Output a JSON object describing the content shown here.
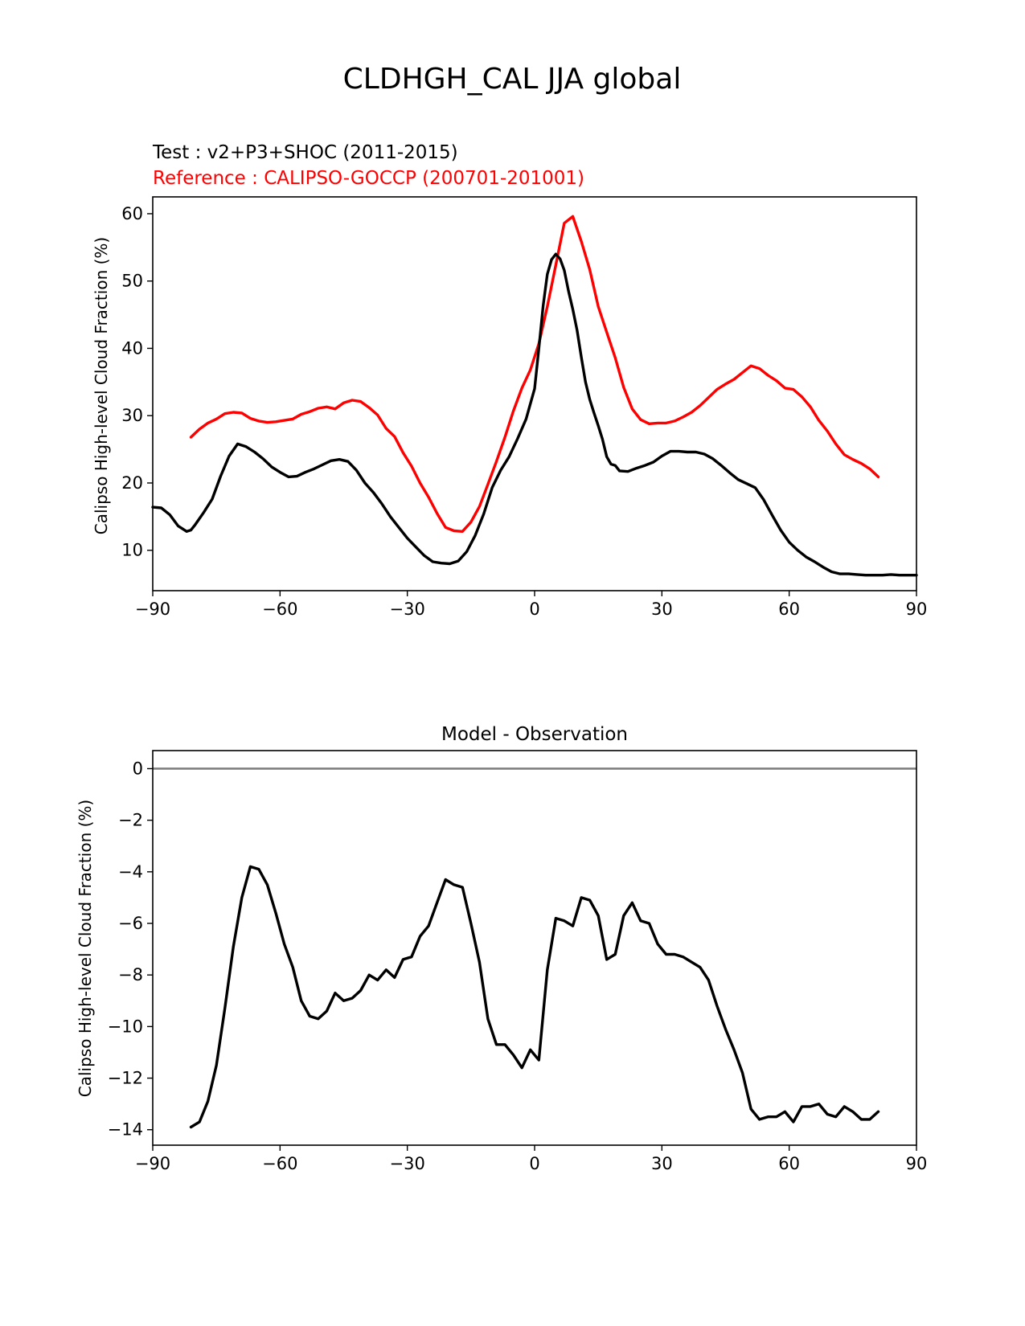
{
  "figure_title": "CLDHGH_CAL JJA global",
  "chart_data": [
    {
      "type": "line",
      "test_label": "Test : v2+P3+SHOC (2011-2015)",
      "reference_label": "Reference : CALIPSO-GOCCP (200701-201001)",
      "ylabel": "Calipso High-level Cloud Fraction (%)",
      "xlim": [
        -90,
        90
      ],
      "ylim": [
        4,
        62.5
      ],
      "xticks": [
        -90,
        -60,
        -30,
        0,
        30,
        60,
        90
      ],
      "xtick_labels": [
        "−90",
        "−60",
        "−30",
        "0",
        "30",
        "60",
        "90"
      ],
      "yticks": [
        10,
        20,
        30,
        40,
        50,
        60
      ],
      "ytick_labels": [
        "10",
        "20",
        "30",
        "40",
        "50",
        "60"
      ],
      "colors": {
        "test": "#000000",
        "reference": "#ff0000",
        "axis": "#000000"
      },
      "series": [
        {
          "key": "reference",
          "color": "#ff0000",
          "x": [
            -81,
            -79,
            -77,
            -75,
            -73,
            -71,
            -69,
            -67,
            -65,
            -63,
            -61,
            -59,
            -57,
            -55,
            -53,
            -51,
            -49,
            -47,
            -45,
            -43,
            -41,
            -39,
            -37,
            -35,
            -33,
            -31,
            -29,
            -27,
            -25,
            -23,
            -21,
            -19,
            -17,
            -15,
            -13,
            -11,
            -9,
            -7,
            -5,
            -3,
            -1,
            1,
            3,
            5,
            7,
            9,
            11,
            13,
            15,
            17,
            19,
            21,
            23,
            25,
            27,
            29,
            31,
            33,
            35,
            37,
            39,
            41,
            43,
            45,
            47,
            49,
            51,
            53,
            55,
            57,
            59,
            61,
            63,
            65,
            67,
            69,
            71,
            73,
            75,
            77,
            79,
            81
          ],
          "y": [
            26.8,
            28.0,
            28.9,
            29.5,
            30.3,
            30.5,
            30.4,
            29.6,
            29.2,
            29.0,
            29.1,
            29.3,
            29.5,
            30.2,
            30.6,
            31.1,
            31.3,
            31.0,
            31.9,
            32.3,
            32.1,
            31.2,
            30.1,
            28.1,
            26.9,
            24.5,
            22.5,
            20.0,
            17.9,
            15.5,
            13.4,
            12.9,
            12.8,
            14.2,
            16.5,
            19.8,
            23.2,
            26.8,
            30.7,
            34.1,
            36.8,
            40.7,
            46.2,
            52.4,
            58.6,
            59.6,
            55.9,
            51.7,
            46.2,
            42.4,
            38.6,
            34.2,
            31.0,
            29.4,
            28.8,
            28.9,
            28.9,
            29.2,
            29.8,
            30.5,
            31.5,
            32.7,
            33.9,
            34.7,
            35.4,
            36.4,
            37.4,
            37.0,
            36.0,
            35.2,
            34.1,
            33.9,
            32.8,
            31.3,
            29.3,
            27.7,
            25.8,
            24.2,
            23.5,
            22.9,
            22.1,
            20.9
          ]
        },
        {
          "key": "test",
          "color": "#000000",
          "x": [
            -90,
            -88,
            -86,
            -84,
            -82,
            -81,
            -80,
            -78,
            -76,
            -74,
            -72,
            -70,
            -68,
            -66,
            -64,
            -62,
            -60,
            -58,
            -56,
            -54,
            -52,
            -50,
            -48,
            -46,
            -44,
            -42,
            -40,
            -38,
            -36,
            -34,
            -32,
            -30,
            -28,
            -26,
            -24,
            -22,
            -20,
            -18,
            -16,
            -14,
            -12,
            -10,
            -8,
            -6,
            -4,
            -2,
            0,
            1,
            2,
            3,
            4,
            5,
            6,
            7,
            8,
            9,
            10,
            11,
            12,
            13,
            14,
            15,
            16,
            17,
            18,
            19,
            20,
            22,
            24,
            26,
            28,
            30,
            32,
            34,
            36,
            38,
            40,
            42,
            44,
            46,
            48,
            50,
            52,
            54,
            56,
            58,
            60,
            62,
            64,
            66,
            68,
            70,
            72,
            74,
            76,
            78,
            80,
            82,
            84,
            86,
            88,
            90
          ],
          "y": [
            16.4,
            16.3,
            15.3,
            13.6,
            12.8,
            13.0,
            13.8,
            15.6,
            17.6,
            21.0,
            24.0,
            25.8,
            25.4,
            24.6,
            23.6,
            22.4,
            21.6,
            20.9,
            21.0,
            21.6,
            22.1,
            22.7,
            23.3,
            23.5,
            23.2,
            21.9,
            20.0,
            18.6,
            16.9,
            15.0,
            13.4,
            11.8,
            10.5,
            9.2,
            8.3,
            8.1,
            8.0,
            8.4,
            9.8,
            12.2,
            15.4,
            19.3,
            21.9,
            23.9,
            26.6,
            29.5,
            34.0,
            40.0,
            46.3,
            51.0,
            53.2,
            54.0,
            53.3,
            51.6,
            48.5,
            45.8,
            42.7,
            38.7,
            35.0,
            32.4,
            30.4,
            28.5,
            26.5,
            23.9,
            22.8,
            22.6,
            21.8,
            21.7,
            22.2,
            22.6,
            23.1,
            24.0,
            24.7,
            24.7,
            24.6,
            24.6,
            24.3,
            23.6,
            22.6,
            21.5,
            20.5,
            19.9,
            19.3,
            17.5,
            15.2,
            13.0,
            11.2,
            10.0,
            9.0,
            8.3,
            7.5,
            6.8,
            6.5,
            6.5,
            6.4,
            6.3,
            6.3,
            6.3,
            6.4,
            6.3,
            6.3,
            6.3
          ]
        }
      ]
    },
    {
      "type": "line",
      "title": "Model - Observation",
      "ylabel": "Calipso High-level Cloud Fraction (%)",
      "xlim": [
        -90,
        90
      ],
      "ylim": [
        -14.6,
        0.7
      ],
      "xticks": [
        -90,
        -60,
        -30,
        0,
        30,
        60,
        90
      ],
      "xtick_labels": [
        "−90",
        "−60",
        "−30",
        "0",
        "30",
        "60",
        "90"
      ],
      "yticks": [
        0,
        -2,
        -4,
        -6,
        -8,
        -10,
        -12,
        -14
      ],
      "ytick_labels": [
        "0",
        "−2",
        "−4",
        "−6",
        "−8",
        "−10",
        "−12",
        "−14"
      ],
      "zero_line": {
        "value": 0,
        "color": "#808080"
      },
      "colors": {
        "difference": "#000000",
        "zero_line": "#808080"
      },
      "series": [
        {
          "key": "difference",
          "color": "#000000",
          "x": [
            -81,
            -79,
            -77,
            -75,
            -73,
            -71,
            -69,
            -67,
            -65,
            -63,
            -61,
            -59,
            -57,
            -55,
            -53,
            -51,
            -49,
            -47,
            -45,
            -43,
            -41,
            -39,
            -37,
            -35,
            -33,
            -31,
            -29,
            -27,
            -25,
            -23,
            -21,
            -19,
            -17,
            -15,
            -13,
            -11,
            -9,
            -7,
            -5,
            -3,
            -1,
            1,
            3,
            5,
            7,
            9,
            11,
            13,
            15,
            17,
            19,
            21,
            23,
            25,
            27,
            29,
            31,
            33,
            35,
            37,
            39,
            41,
            43,
            45,
            47,
            49,
            51,
            53,
            55,
            57,
            59,
            61,
            63,
            65,
            67,
            69,
            71,
            73,
            75,
            77,
            79,
            81
          ],
          "y": [
            -13.9,
            -13.7,
            -12.9,
            -11.5,
            -9.3,
            -6.9,
            -5.0,
            -3.8,
            -3.9,
            -4.5,
            -5.6,
            -6.8,
            -7.7,
            -9.0,
            -9.6,
            -9.7,
            -9.4,
            -8.7,
            -9.0,
            -8.9,
            -8.6,
            -8.0,
            -8.2,
            -7.8,
            -8.1,
            -7.4,
            -7.3,
            -6.5,
            -6.1,
            -5.2,
            -4.3,
            -4.5,
            -4.6,
            -6.0,
            -7.5,
            -9.7,
            -10.7,
            -10.7,
            -11.1,
            -11.6,
            -10.9,
            -11.3,
            -7.8,
            -5.8,
            -5.9,
            -6.1,
            -5.0,
            -5.1,
            -5.7,
            -7.4,
            -7.2,
            -5.7,
            -5.2,
            -5.9,
            -6.0,
            -6.8,
            -7.2,
            -7.2,
            -7.3,
            -7.5,
            -7.7,
            -8.2,
            -9.2,
            -10.1,
            -10.9,
            -11.8,
            -13.2,
            -13.6,
            -13.5,
            -13.5,
            -13.3,
            -13.7,
            -13.1,
            -13.1,
            -13.0,
            -13.4,
            -13.5,
            -13.1,
            -13.3,
            -13.6,
            -13.6,
            -13.3
          ]
        }
      ]
    }
  ]
}
